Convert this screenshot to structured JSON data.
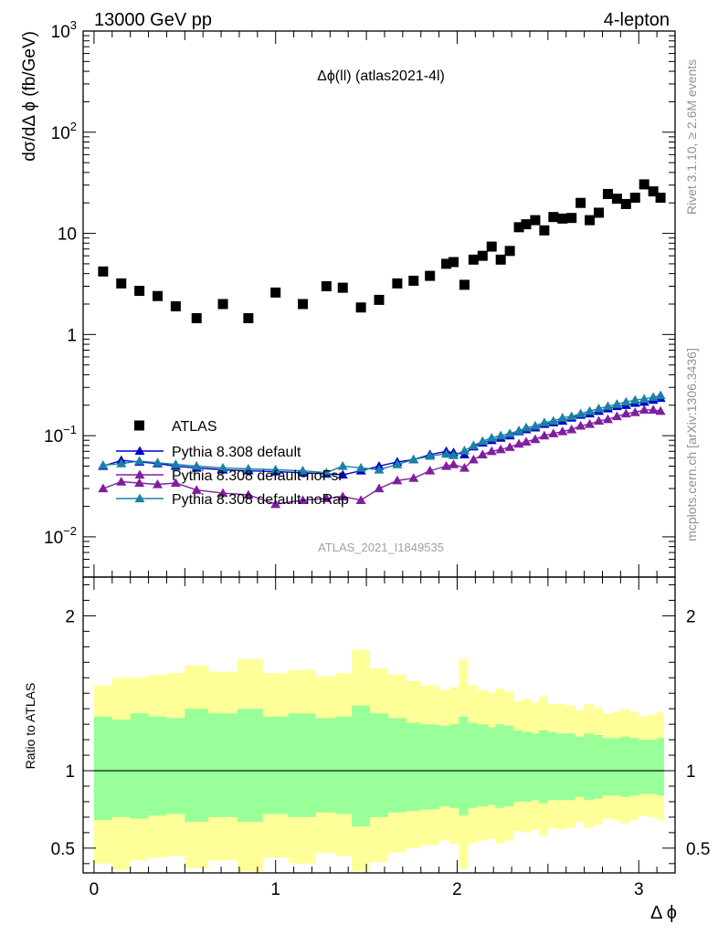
{
  "header": {
    "left": "13000 GeV pp",
    "right": "4-lepton"
  },
  "side_labels": {
    "rivet": "Rivet 3.1.10, ≥ 2.6M events",
    "mcplots": "mcplots.cern.ch [arXiv:1306.3436]"
  },
  "colors": {
    "atlas": "#000000",
    "default": "#0000cc",
    "noFsr": "#7f1fa0",
    "noRap": "#1a80a6",
    "band_outer": "#ffff99",
    "band_inner": "#99ff99"
  },
  "chart_data": [
    {
      "type": "scatter",
      "title": "Δϕ(ll) (atlas2021-4l)",
      "watermark": "ATLAS_2021_I1849535",
      "xlabel": "Δ ϕ",
      "ylabel": "dσ/dΔ ϕ (fb/GeV)",
      "xlim": [
        -0.06,
        3.2
      ],
      "ylim": [
        0.004,
        1000
      ],
      "yscale": "log",
      "x_ticks": [
        "0",
        "1",
        "2",
        "3"
      ],
      "y_ticks": [
        "10",
        "1"
      ],
      "y_ticks_pow": [
        {
          "base": "10",
          "exp": "3",
          "value": 1000
        },
        {
          "base": "10",
          "exp": "2",
          "value": 100
        },
        {
          "base": "10",
          "exp": "−1",
          "value": 0.1
        },
        {
          "base": "10",
          "exp": "−2",
          "value": 0.01
        }
      ],
      "legend_position": "middle-left",
      "legend": [
        "ATLAS",
        "Pythia 8.308 default",
        "Pythia 8.308 default-noFsr",
        "Pythia 8.308 default-noRap"
      ],
      "x": [
        0.05,
        0.15,
        0.25,
        0.35,
        0.45,
        0.565,
        0.71,
        0.85,
        1.0,
        1.15,
        1.28,
        1.37,
        1.47,
        1.57,
        1.67,
        1.76,
        1.85,
        1.94,
        1.98,
        2.04,
        2.09,
        2.14,
        2.19,
        2.24,
        2.29,
        2.34,
        2.38,
        2.43,
        2.48,
        2.53,
        2.58,
        2.63,
        2.68,
        2.73,
        2.78,
        2.83,
        2.88,
        2.93,
        2.98,
        3.03,
        3.08,
        3.12
      ],
      "series": [
        {
          "name": "ATLAS",
          "marker": "square",
          "values": [
            4.2,
            3.2,
            2.7,
            2.4,
            1.9,
            1.45,
            2.0,
            1.45,
            2.6,
            2.0,
            3.0,
            2.9,
            1.85,
            2.2,
            3.2,
            3.4,
            3.8,
            5.0,
            5.2,
            3.1,
            5.5,
            6.0,
            7.4,
            5.5,
            6.7,
            11.5,
            12.3,
            13.5,
            10.7,
            14.5,
            14.0,
            14.2,
            20.0,
            13.5,
            16.0,
            24.5,
            22.0,
            19.5,
            22.5,
            30.5,
            26.0,
            22.5
          ]
        },
        {
          "name": "Pythia 8.308 default",
          "marker": "triangle",
          "values": [
            0.05,
            0.057,
            0.055,
            0.053,
            0.05,
            0.048,
            0.046,
            0.045,
            0.044,
            0.043,
            0.042,
            0.041,
            0.045,
            0.05,
            0.055,
            0.058,
            0.065,
            0.07,
            0.068,
            0.065,
            0.078,
            0.085,
            0.09,
            0.095,
            0.1,
            0.11,
            0.115,
            0.12,
            0.13,
            0.135,
            0.14,
            0.15,
            0.16,
            0.165,
            0.175,
            0.185,
            0.195,
            0.2,
            0.21,
            0.215,
            0.225,
            0.235
          ]
        },
        {
          "name": "Pythia 8.308 default-noFsr",
          "marker": "triangle",
          "values": [
            0.03,
            0.035,
            0.034,
            0.033,
            0.034,
            0.029,
            0.027,
            0.026,
            0.021,
            0.023,
            0.024,
            0.025,
            0.023,
            0.03,
            0.036,
            0.038,
            0.045,
            0.05,
            0.052,
            0.048,
            0.058,
            0.065,
            0.07,
            0.073,
            0.077,
            0.083,
            0.087,
            0.092,
            0.1,
            0.105,
            0.11,
            0.115,
            0.125,
            0.13,
            0.14,
            0.145,
            0.155,
            0.165,
            0.17,
            0.18,
            0.18,
            0.175
          ]
        },
        {
          "name": "Pythia 8.308 default-noRap",
          "marker": "triangle",
          "values": [
            0.051,
            0.053,
            0.056,
            0.054,
            0.052,
            0.05,
            0.048,
            0.047,
            0.046,
            0.045,
            0.043,
            0.05,
            0.048,
            0.046,
            0.052,
            0.058,
            0.063,
            0.066,
            0.064,
            0.071,
            0.08,
            0.088,
            0.095,
            0.1,
            0.105,
            0.112,
            0.12,
            0.125,
            0.135,
            0.14,
            0.15,
            0.155,
            0.165,
            0.175,
            0.185,
            0.195,
            0.205,
            0.215,
            0.225,
            0.23,
            0.24,
            0.25
          ]
        }
      ]
    },
    {
      "type": "area",
      "ylabel": "Ratio to ATLAS",
      "xlim": [
        -0.06,
        3.2
      ],
      "ylim": [
        0.34,
        2.25
      ],
      "y_ticks": [
        "2",
        "1",
        "0.5"
      ],
      "reference_line": 1,
      "bin_edges": [
        0.0,
        0.1,
        0.2,
        0.3,
        0.4,
        0.5,
        0.63,
        0.79,
        0.93,
        1.07,
        1.22,
        1.33,
        1.42,
        1.52,
        1.62,
        1.72,
        1.8,
        1.9,
        1.96,
        2.01,
        2.06,
        2.11,
        2.17,
        2.21,
        2.26,
        2.31,
        2.36,
        2.41,
        2.45,
        2.5,
        2.55,
        2.6,
        2.65,
        2.7,
        2.75,
        2.8,
        2.85,
        2.9,
        2.95,
        3.0,
        3.05,
        3.1,
        3.14
      ],
      "inner_band": [
        [
          0.68,
          1.35
        ],
        [
          0.7,
          1.33
        ],
        [
          0.69,
          1.37
        ],
        [
          0.71,
          1.35
        ],
        [
          0.72,
          1.34
        ],
        [
          0.67,
          1.4
        ],
        [
          0.7,
          1.37
        ],
        [
          0.67,
          1.4
        ],
        [
          0.72,
          1.35
        ],
        [
          0.7,
          1.37
        ],
        [
          0.73,
          1.34
        ],
        [
          0.72,
          1.35
        ],
        [
          0.64,
          1.42
        ],
        [
          0.7,
          1.37
        ],
        [
          0.73,
          1.34
        ],
        [
          0.74,
          1.31
        ],
        [
          0.75,
          1.3
        ],
        [
          0.77,
          1.29
        ],
        [
          0.76,
          1.3
        ],
        [
          0.71,
          1.35
        ],
        [
          0.76,
          1.31
        ],
        [
          0.77,
          1.3
        ],
        [
          0.78,
          1.28
        ],
        [
          0.76,
          1.3
        ],
        [
          0.77,
          1.29
        ],
        [
          0.8,
          1.26
        ],
        [
          0.8,
          1.25
        ],
        [
          0.81,
          1.24
        ],
        [
          0.79,
          1.26
        ],
        [
          0.81,
          1.25
        ],
        [
          0.81,
          1.24
        ],
        [
          0.81,
          1.24
        ],
        [
          0.83,
          1.22
        ],
        [
          0.81,
          1.24
        ],
        [
          0.82,
          1.23
        ],
        [
          0.84,
          1.21
        ],
        [
          0.84,
          1.21
        ],
        [
          0.83,
          1.22
        ],
        [
          0.84,
          1.21
        ],
        [
          0.85,
          1.2
        ],
        [
          0.85,
          1.2
        ],
        [
          0.84,
          1.21
        ]
      ],
      "outer_band": [
        [
          0.4,
          1.55
        ],
        [
          0.36,
          1.6
        ],
        [
          0.42,
          1.6
        ],
        [
          0.44,
          1.62
        ],
        [
          0.45,
          1.63
        ],
        [
          0.37,
          1.68
        ],
        [
          0.42,
          1.64
        ],
        [
          0.35,
          1.72
        ],
        [
          0.44,
          1.63
        ],
        [
          0.4,
          1.65
        ],
        [
          0.47,
          1.61
        ],
        [
          0.45,
          1.63
        ],
        [
          0.35,
          1.78
        ],
        [
          0.41,
          1.66
        ],
        [
          0.47,
          1.62
        ],
        [
          0.5,
          1.58
        ],
        [
          0.52,
          1.55
        ],
        [
          0.55,
          1.52
        ],
        [
          0.53,
          1.54
        ],
        [
          0.36,
          1.72
        ],
        [
          0.53,
          1.55
        ],
        [
          0.55,
          1.52
        ],
        [
          0.56,
          1.5
        ],
        [
          0.53,
          1.53
        ],
        [
          0.55,
          1.51
        ],
        [
          0.61,
          1.45
        ],
        [
          0.6,
          1.46
        ],
        [
          0.62,
          1.44
        ],
        [
          0.58,
          1.48
        ],
        [
          0.63,
          1.43
        ],
        [
          0.62,
          1.43
        ],
        [
          0.63,
          1.42
        ],
        [
          0.67,
          1.39
        ],
        [
          0.63,
          1.43
        ],
        [
          0.65,
          1.41
        ],
        [
          0.69,
          1.37
        ],
        [
          0.68,
          1.38
        ],
        [
          0.66,
          1.4
        ],
        [
          0.68,
          1.38
        ],
        [
          0.71,
          1.35
        ],
        [
          0.7,
          1.36
        ],
        [
          0.68,
          1.38
        ]
      ]
    }
  ]
}
